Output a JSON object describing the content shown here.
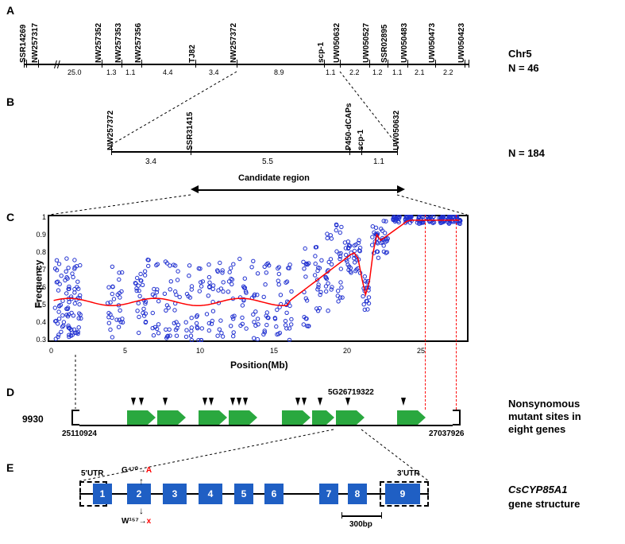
{
  "panels": {
    "A": "A",
    "B": "B",
    "C": "C",
    "D": "D",
    "E": "E"
  },
  "panelA": {
    "chr_label": "Chr5",
    "n_label": "N = 46",
    "markers": [
      "SSR14269",
      "NW257317",
      "NW257352",
      "NW257353",
      "NW257356",
      "TJ82",
      "NW257372",
      "scp-1",
      "UW050632",
      "UW050527",
      "SSR02895",
      "UW050483",
      "UW050473",
      "UW050423"
    ],
    "distances": [
      "25.0",
      "1.3",
      "1.1",
      "4.4",
      "3.4",
      "8.9",
      "1.1",
      "2.2",
      "1.2",
      "1.1",
      "2.1",
      "2.2"
    ]
  },
  "panelB": {
    "n_label": "N = 184",
    "markers": [
      "NW257372",
      "SSR31415",
      "P450-dCAPs",
      "scp-1",
      "UW050632"
    ],
    "distances": [
      "3.4",
      "5.5",
      "1.1"
    ],
    "candidate_label": "Candidate region"
  },
  "panelC": {
    "ylabel": "Frequency",
    "xlabel": "Position(Mb)",
    "ylim": [
      0.3,
      1.0
    ],
    "yticks": [
      "0.3",
      "0.4",
      "0.5",
      "0.6",
      "0.7",
      "0.8",
      "0.9",
      "1"
    ],
    "xlim": [
      0,
      28
    ],
    "xticks": [
      "0",
      "5",
      "10",
      "15",
      "20",
      "25"
    ],
    "point_color": "#2030d0",
    "line_color": "#ff0000",
    "bg": "#ffffff"
  },
  "panelD": {
    "label_9930": "9930",
    "pos_left": "25110924",
    "pos_right": "27037926",
    "site_label": "5G26719322",
    "right_label1": "Nonsynomous",
    "right_label2": "mutant sites in",
    "right_label3": "eight genes",
    "gene_color": "#2aa83f"
  },
  "panelE": {
    "utr5": "5'UTR",
    "utr3": "3'UTR",
    "exons": [
      "1",
      "2",
      "3",
      "4",
      "5",
      "6",
      "7",
      "8",
      "9"
    ],
    "mut_top": "G⁴⁷⁰",
    "mut_top_to": "A",
    "mut_bot": "W¹⁵⁷",
    "mut_bot_to": "x",
    "scale": "300bp",
    "right_label1": "CsCYP85A1",
    "right_label2": "gene structure",
    "exon_color": "#1f5fc4"
  }
}
